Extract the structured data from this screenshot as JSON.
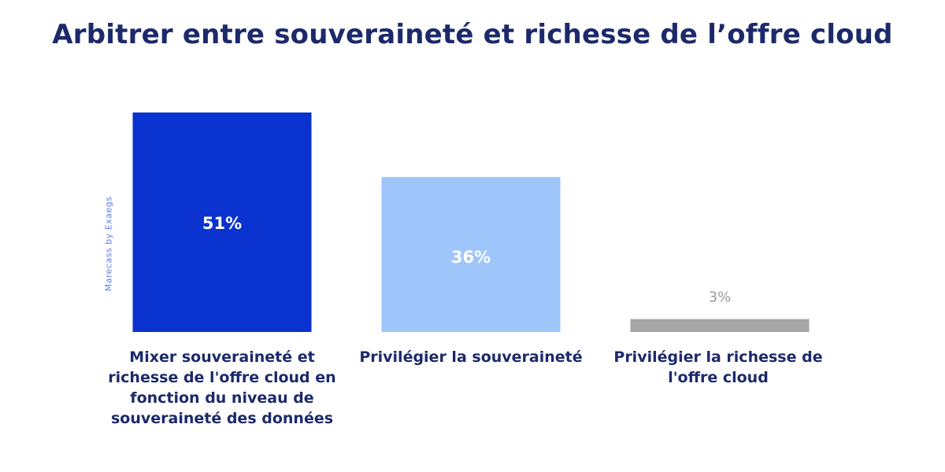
{
  "watermark": "Marecass by Exaegs",
  "colors": {
    "title": "#1c2a6b",
    "label": "#1c2a6b",
    "value_label_dark_bar": "#ffffff",
    "value_label_outside": "#9a9a9a"
  },
  "chart_data": {
    "type": "bar",
    "title": "Arbitrer entre souveraineté et richesse de l’offre cloud",
    "xlabel": "",
    "ylabel": "",
    "ylim": [
      0,
      51
    ],
    "grid": false,
    "categories": [
      "Mixer souveraineté et richesse de l'offre cloud en fonction du niveau de souveraineté des données",
      "Privilégier la souveraineté",
      "Privilégier la richesse de l'offre cloud"
    ],
    "values": [
      51,
      36,
      3
    ],
    "value_labels": [
      "51%",
      "36%",
      "3%"
    ],
    "bar_colors": [
      "#0a32cf",
      "#9ec6fb",
      "#a6a6a6"
    ]
  }
}
